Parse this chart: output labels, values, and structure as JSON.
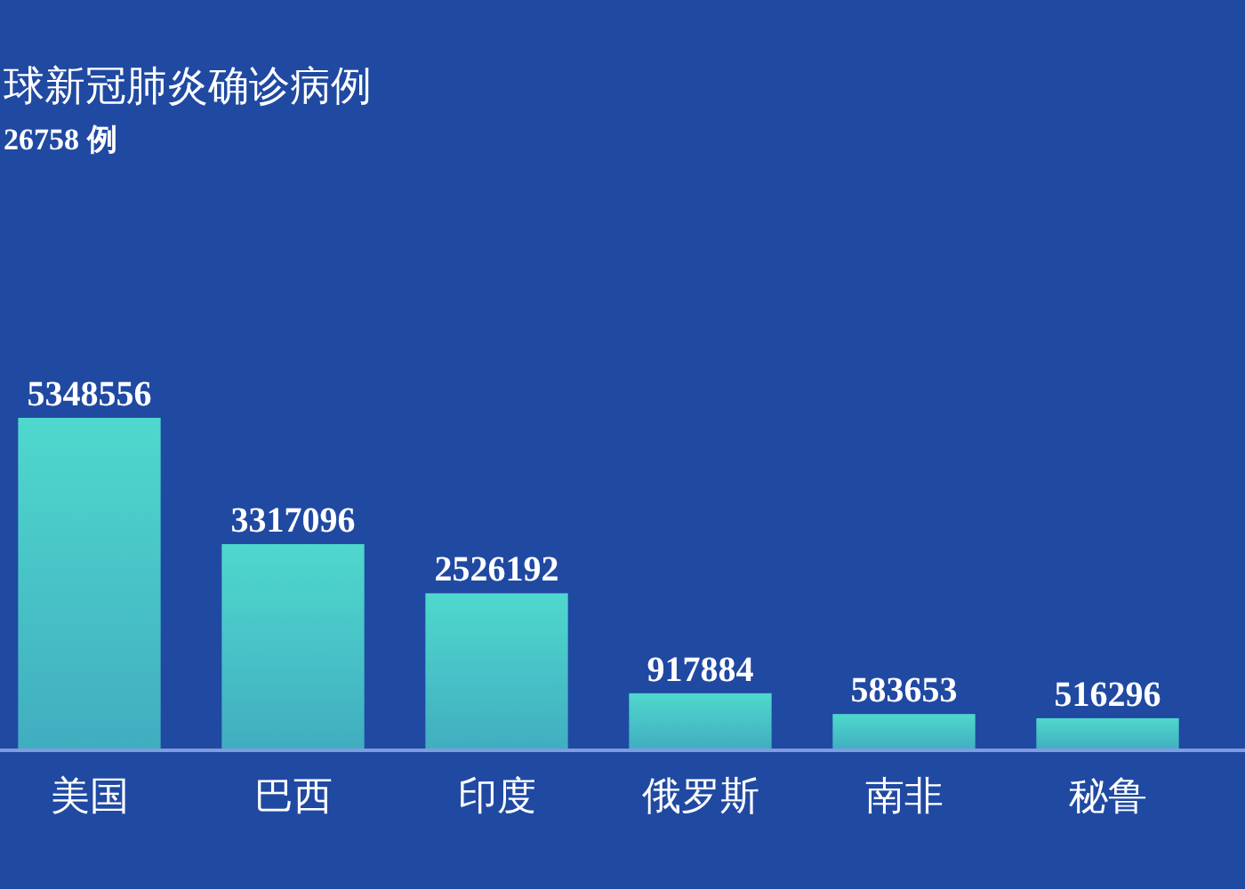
{
  "chart_data": {
    "type": "bar",
    "title": "球新冠肺炎确诊病例",
    "subtitle": "26758 例",
    "categories": [
      "美国",
      "巴西",
      "印度",
      "俄罗斯",
      "南非",
      "秘鲁"
    ],
    "values": [
      5348556,
      3317096,
      2526192,
      917884,
      583653,
      516296
    ],
    "color": "#4fd8cd",
    "data_labels": true
  }
}
